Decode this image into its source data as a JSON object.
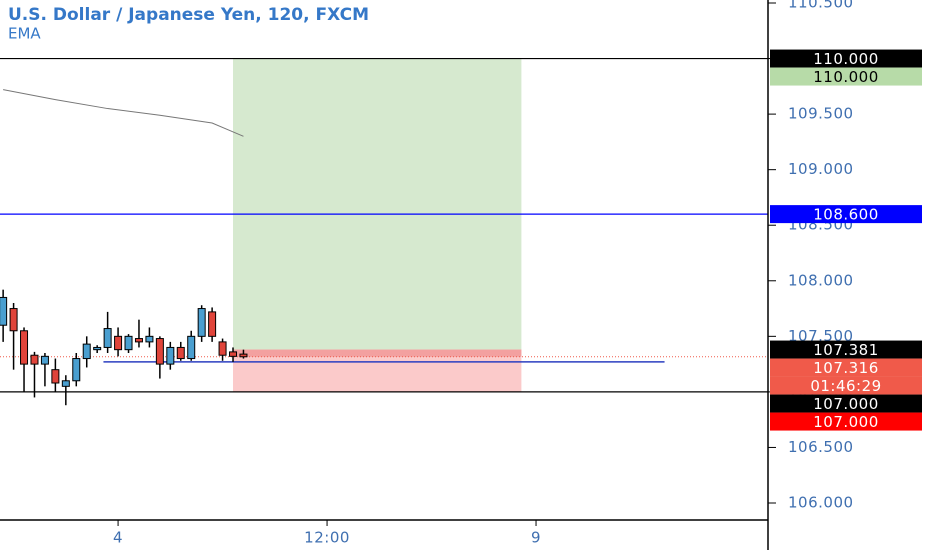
{
  "chart_data": {
    "type": "candlestick",
    "title": "U.S. Dollar / Japanese Yen, 120, FXCM",
    "subtitle": "EMA",
    "up_color": "#4a9fd0",
    "down_color": "#e0443a",
    "x": [
      0,
      1,
      2,
      3,
      4,
      5,
      6,
      7,
      8,
      9,
      10,
      11,
      12,
      13,
      14,
      15,
      16,
      17,
      18,
      19,
      20,
      21,
      22,
      23
    ],
    "open": [
      107.6,
      107.75,
      107.55,
      107.33,
      107.25,
      107.2,
      107.05,
      107.1,
      107.3,
      107.38,
      107.4,
      107.5,
      107.38,
      107.48,
      107.45,
      107.48,
      107.25,
      107.4,
      107.3,
      107.5,
      107.72,
      107.45,
      107.36,
      107.34
    ],
    "high": [
      107.92,
      107.8,
      107.58,
      107.36,
      107.35,
      107.3,
      107.15,
      107.35,
      107.5,
      107.42,
      107.72,
      107.58,
      107.52,
      107.65,
      107.58,
      107.5,
      107.45,
      107.45,
      107.55,
      107.78,
      107.76,
      107.48,
      107.4,
      107.38
    ],
    "low": [
      107.45,
      107.2,
      107.0,
      106.95,
      107.05,
      107.0,
      106.88,
      107.05,
      107.22,
      107.35,
      107.35,
      107.32,
      107.35,
      107.4,
      107.4,
      107.12,
      107.2,
      107.28,
      107.28,
      107.45,
      107.45,
      107.28,
      107.27,
      107.3
    ],
    "close": [
      107.85,
      107.55,
      107.25,
      107.25,
      107.32,
      107.08,
      107.1,
      107.3,
      107.43,
      107.4,
      107.57,
      107.38,
      107.5,
      107.45,
      107.5,
      107.25,
      107.4,
      107.3,
      107.5,
      107.75,
      107.5,
      107.33,
      107.32,
      107.316
    ],
    "ema": {
      "name": "EMA",
      "color": "#777777",
      "x": [
        0,
        5,
        10,
        15,
        20,
        23
      ],
      "values": [
        109.72,
        109.63,
        109.55,
        109.49,
        109.42,
        109.3
      ]
    },
    "xlim": [
      -0.3,
      73.2
    ],
    "xticks": [
      {
        "value": 11,
        "label": "4"
      },
      {
        "value": 31,
        "label": "12:00"
      },
      {
        "value": 51,
        "label": "9"
      }
    ],
    "ylim": [
      106.0,
      110.527
    ],
    "yticks": [
      {
        "value": 106.0,
        "label": "106.000"
      },
      {
        "value": 106.5,
        "label": "106.500"
      },
      {
        "value": 107.0,
        "label": "107.000"
      },
      {
        "value": 107.5,
        "label": "107.500"
      },
      {
        "value": 108.0,
        "label": "108.000"
      },
      {
        "value": 108.5,
        "label": "108.500"
      },
      {
        "value": 109.0,
        "label": "109.000"
      },
      {
        "value": 109.5,
        "label": "109.500"
      },
      {
        "value": 110.0,
        "label": "110.000"
      },
      {
        "value": 110.5,
        "label": "110.500"
      }
    ],
    "hlines": [
      {
        "value": 110.0,
        "color": "#000000"
      },
      {
        "value": 108.6,
        "color": "#0000ff"
      },
      {
        "value": 107.0,
        "color": "#000000"
      }
    ],
    "trend_line": {
      "value": 107.27,
      "x": [
        9.6,
        63.3
      ],
      "color": "#2b3fc0"
    },
    "position": {
      "target": 110.0,
      "entry": 107.381,
      "stop": 107.0,
      "x": [
        22,
        49.6
      ]
    },
    "price_labels": [
      {
        "value": 110.0,
        "label": "110.000",
        "color": "#000000",
        "text_color": "#ffffff"
      },
      {
        "value": 110.0,
        "label": "110.000",
        "color": "#b7dba8",
        "text_color": "#000000"
      },
      {
        "value": 108.6,
        "label": "108.600",
        "color": "#0000ff",
        "text_color": "#ffffff"
      },
      {
        "value": 107.381,
        "label": "107.381",
        "color": "#000000",
        "text_color": "#ffffff"
      },
      {
        "value": 107.316,
        "label": "107.316",
        "color": "#f05a4a",
        "text_color": "#ffffff",
        "countdown": "01:46:29"
      },
      {
        "value": 107.0,
        "label": "107.000",
        "color": "#000000",
        "text_color": "#ffffff"
      },
      {
        "value": 107.0,
        "label": "107.000",
        "color": "#ff0000",
        "text_color": "#ffffff"
      }
    ]
  }
}
